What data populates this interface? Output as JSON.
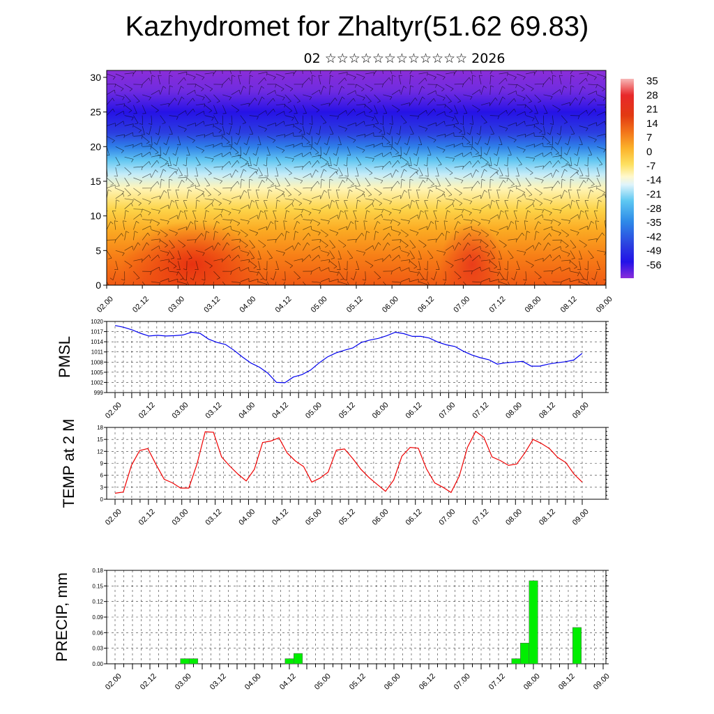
{
  "title": "Kazhydromet for Zhaltyr(51.62 69.83)",
  "subtitle": "02 ☆☆☆☆☆☆☆☆☆☆☆☆ 2026",
  "chart_data": [
    {
      "type": "heatmap",
      "name": "cross-section",
      "x_ticks": [
        "02.00",
        "02.12",
        "03.00",
        "03.12",
        "04.00",
        "04.12",
        "05.00",
        "05.12",
        "06.00",
        "06.12",
        "07.00",
        "07.12",
        "08.00",
        "08.12",
        "09.00"
      ],
      "y_ticks": [
        "0",
        "5",
        "10",
        "15",
        "20",
        "25",
        "30"
      ],
      "ylim": [
        0,
        31
      ],
      "colorbar_labels": [
        "35",
        "28",
        "21",
        "14",
        "7",
        "0",
        "-7",
        "-14",
        "-21",
        "-28",
        "-35",
        "-42",
        "-49",
        "-56"
      ],
      "colorbar_range": [
        -60,
        38
      ],
      "bands": [
        {
          "alt": 0,
          "color": "#f05a14"
        },
        {
          "alt": 4,
          "color": "#f77d16"
        },
        {
          "alt": 8,
          "color": "#fbab23"
        },
        {
          "alt": 11,
          "color": "#fdd54a"
        },
        {
          "alt": 14,
          "color": "#fff5b8"
        },
        {
          "alt": 16,
          "color": "#c6ecf8"
        },
        {
          "alt": 18,
          "color": "#63c7f2"
        },
        {
          "alt": 20,
          "color": "#2f7fe8"
        },
        {
          "alt": 22,
          "color": "#2b3ee0"
        },
        {
          "alt": 25,
          "color": "#2612e6"
        },
        {
          "alt": 28,
          "color": "#6f2be0"
        },
        {
          "alt": 31,
          "color": "#8b2ed8"
        }
      ],
      "hotspots": [
        {
          "x": 3.2,
          "alt": 3,
          "r": 1.0,
          "color": "#e62a10"
        },
        {
          "x": 7.12,
          "alt": 3,
          "r": 0.45,
          "color": "#e8361a"
        }
      ]
    },
    {
      "type": "line",
      "name": "pmsl",
      "ylabel": "PMSL",
      "ylim": [
        999,
        1020
      ],
      "y_ticks": [
        "1020",
        "1017",
        "1014",
        "1011",
        "1008",
        "1005",
        "1002",
        "999"
      ],
      "x_ticks": [
        "02.00",
        "02.12",
        "03.00",
        "03.12",
        "04.00",
        "04.12",
        "05.00",
        "05.12",
        "06.00",
        "06.12",
        "07.00",
        "07.12",
        "08.00",
        "08.12",
        "09.00"
      ],
      "color": "#0000ee",
      "values": [
        1018.8,
        1018.3,
        1017.5,
        1016.5,
        1015.7,
        1015.9,
        1015.7,
        1015.8,
        1016.0,
        1016.8,
        1016.5,
        1014.8,
        1013.8,
        1013.2,
        1011.5,
        1009.5,
        1007.7,
        1006.5,
        1004.7,
        1002.0,
        1001.9,
        1003.6,
        1004.3,
        1005.6,
        1007.7,
        1009.5,
        1010.7,
        1011.5,
        1012.2,
        1013.8,
        1014.5,
        1015.0,
        1015.8,
        1016.8,
        1016.4,
        1015.6,
        1015.6,
        1015.1,
        1013.9,
        1013.1,
        1012.6,
        1011.2,
        1010.1,
        1009.3,
        1008.7,
        1007.4,
        1007.8,
        1008.0,
        1008.2,
        1006.8,
        1006.8,
        1007.4,
        1007.8,
        1008.1,
        1008.6,
        1010.6
      ]
    },
    {
      "type": "line",
      "name": "temp",
      "ylabel": "TEMP at 2 M",
      "ylim": [
        0,
        18
      ],
      "y_ticks": [
        "18",
        "15",
        "12",
        "9",
        "6",
        "3",
        "0"
      ],
      "x_ticks": [
        "02.00",
        "02.12",
        "03.00",
        "03.12",
        "04.00",
        "04.12",
        "05.00",
        "05.12",
        "06.00",
        "06.12",
        "07.00",
        "07.12",
        "08.00",
        "08.12",
        "09.00"
      ],
      "color": "#ee0000",
      "values": [
        1.5,
        1.8,
        8.5,
        12.2,
        12.7,
        8.7,
        5.0,
        4.1,
        2.8,
        2.8,
        8.8,
        16.9,
        16.8,
        10.6,
        8.3,
        6.3,
        4.6,
        7.5,
        14.2,
        14.6,
        15.4,
        11.6,
        9.6,
        8.2,
        4.3,
        5.3,
        6.8,
        12.3,
        12.6,
        10.2,
        7.5,
        5.4,
        3.7,
        2.0,
        4.8,
        10.8,
        13.0,
        12.8,
        7.6,
        4.1,
        3.0,
        1.7,
        5.8,
        13.0,
        17.0,
        15.5,
        10.6,
        9.7,
        8.5,
        8.8,
        11.6,
        15.0,
        14.0,
        12.7,
        10.5,
        9.2,
        6.3,
        4.3
      ]
    },
    {
      "type": "bar",
      "name": "precip",
      "ylabel": "PRECIP, mm",
      "ylim": [
        0,
        0.18
      ],
      "y_ticks": [
        "0.18",
        "0.15",
        "0.12",
        "0.09",
        "0.06",
        "0.03",
        "0.00"
      ],
      "x_ticks": [
        "02.00",
        "02.12",
        "03.00",
        "03.12",
        "04.00",
        "04.12",
        "05.00",
        "05.12",
        "06.00",
        "06.12",
        "07.00",
        "07.12",
        "08.00",
        "08.12",
        "09.00"
      ],
      "color": "#00ee00",
      "bars": [
        {
          "t": 8,
          "value": 0.01
        },
        {
          "t": 9,
          "value": 0.01
        },
        {
          "t": 20,
          "value": 0.01
        },
        {
          "t": 21,
          "value": 0.02
        },
        {
          "t": 46,
          "value": 0.01
        },
        {
          "t": 47,
          "value": 0.04
        },
        {
          "t": 48,
          "value": 0.16
        },
        {
          "t": 53,
          "value": 0.07
        }
      ]
    }
  ]
}
